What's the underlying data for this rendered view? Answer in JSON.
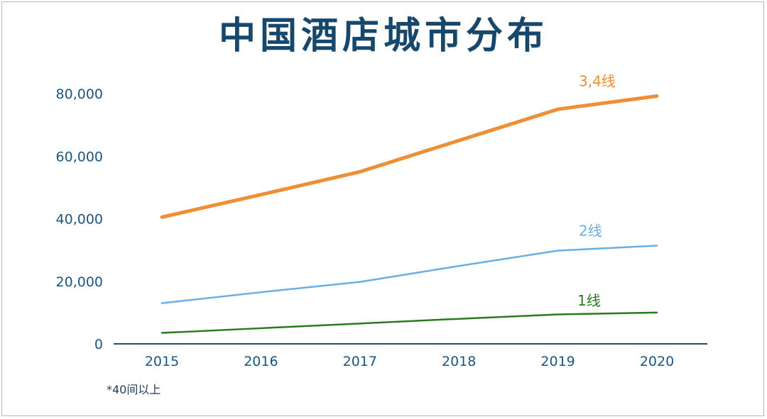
{
  "chart_data": {
    "type": "line",
    "title": "中国酒店城市分布",
    "x": [
      "2015",
      "2016",
      "2017",
      "2018",
      "2019",
      "2020"
    ],
    "ylim": [
      0,
      80000
    ],
    "yticks": [
      "0",
      "20,000",
      "40,000",
      "60,000",
      "80,000"
    ],
    "grid": false,
    "legend": "inline-labels",
    "series": [
      {
        "name": "3,4线",
        "color": "#ef8e34",
        "values": [
          40500,
          47700,
          55000,
          65000,
          75000,
          79200
        ]
      },
      {
        "name": "2线",
        "color": "#6aaee6",
        "values": [
          13000,
          16500,
          19800,
          24900,
          29800,
          31400
        ]
      },
      {
        "name": "1线",
        "color": "#2a7a1e",
        "values": [
          3500,
          5000,
          6500,
          8000,
          9400,
          10000
        ]
      }
    ],
    "footnote": "*40间以上"
  }
}
